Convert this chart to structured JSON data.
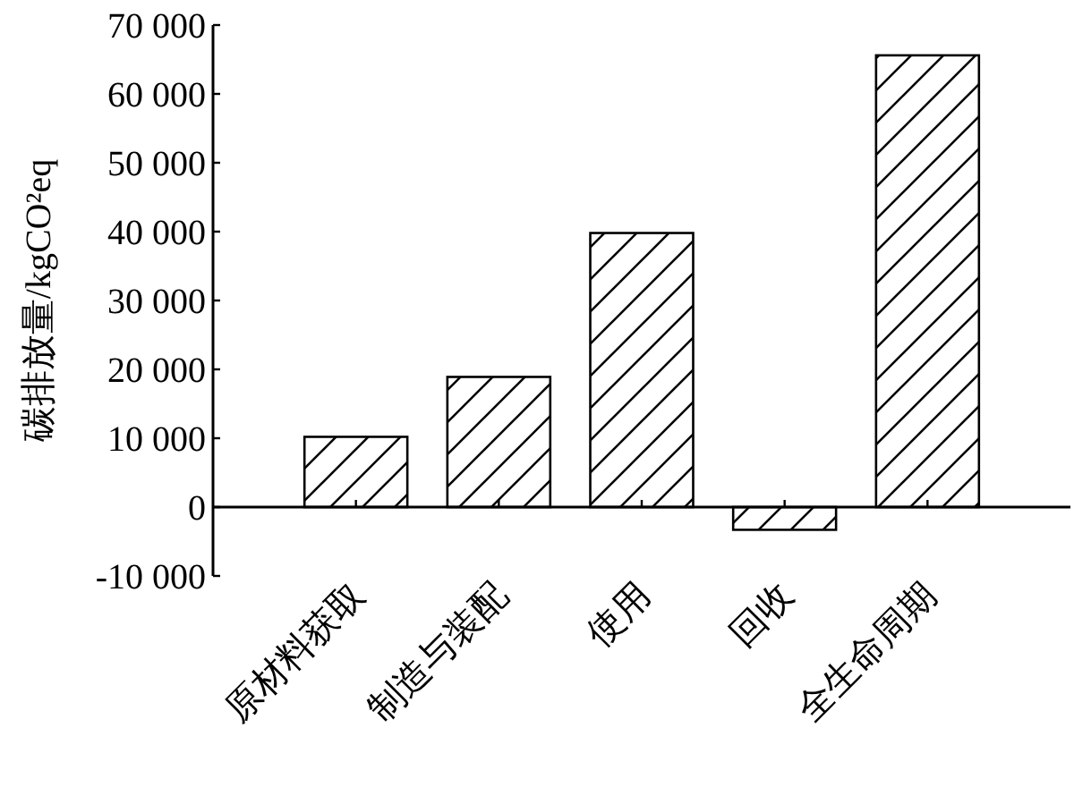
{
  "chart_data": {
    "type": "bar",
    "ylabel": "碳排放量/kgCO²eq",
    "categories": [
      "原材料获取",
      "制造与装配",
      "使用",
      "回收",
      "全生命周期"
    ],
    "values": [
      10200,
      18900,
      39800,
      -3300,
      65600
    ],
    "color": "#000000",
    "ylim": [
      -10000,
      70000
    ],
    "yticks": [
      {
        "value": -10000,
        "label": "-10 000"
      },
      0,
      {
        "value": 10000,
        "label": "10 000"
      },
      {
        "value": 20000,
        "label": "20 000"
      },
      {
        "value": 30000,
        "label": "30 000"
      },
      {
        "value": 40000,
        "label": "40 000"
      },
      {
        "value": 50000,
        "label": "50 000"
      },
      {
        "value": 60000,
        "label": "60 000"
      },
      {
        "value": 70000,
        "label": "70 000"
      }
    ],
    "grid": false
  }
}
